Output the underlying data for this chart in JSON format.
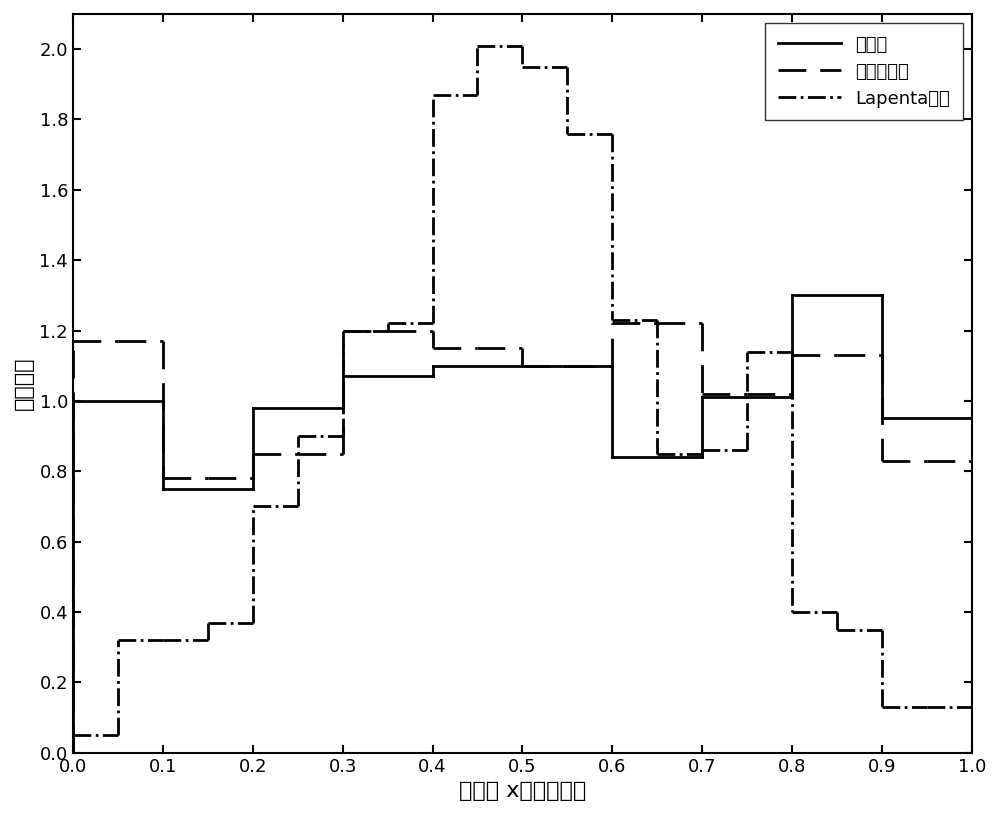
{
  "xlabel": "粒子沿 x方向的位置",
  "ylabel": "概率密度",
  "xlim": [
    0,
    1.0
  ],
  "ylim": [
    0,
    2.1
  ],
  "xticks": [
    0,
    0.1,
    0.2,
    0.3,
    0.4,
    0.5,
    0.6,
    0.7,
    0.8,
    0.9,
    1.0
  ],
  "yticks": [
    0,
    0.2,
    0.4,
    0.6,
    0.8,
    1.0,
    1.2,
    1.4,
    1.6,
    1.8,
    2.0
  ],
  "hebing_edges": [
    0.0,
    0.1,
    0.2,
    0.3,
    0.4,
    0.5,
    0.6,
    0.7,
    0.8,
    0.9,
    1.0
  ],
  "hebing_vals": [
    1.0,
    0.75,
    0.98,
    1.07,
    1.1,
    1.1,
    0.84,
    1.01,
    1.3,
    0.95
  ],
  "sihe_edges": [
    0.0,
    0.05,
    0.1,
    0.15,
    0.2,
    0.25,
    0.3,
    0.35,
    0.4,
    0.45,
    0.5,
    0.55,
    0.6,
    0.65,
    0.7,
    0.75,
    0.8,
    0.85,
    0.9,
    0.95,
    1.0
  ],
  "sihe_vals": [
    1.17,
    1.17,
    0.78,
    0.78,
    0.85,
    0.85,
    1.2,
    1.2,
    1.15,
    1.15,
    1.1,
    1.1,
    1.22,
    1.22,
    1.02,
    1.02,
    1.13,
    1.13,
    0.83,
    0.83
  ],
  "lapenta_edges": [
    0.0,
    0.05,
    0.1,
    0.15,
    0.2,
    0.25,
    0.3,
    0.35,
    0.4,
    0.45,
    0.5,
    0.55,
    0.6,
    0.65,
    0.7,
    0.75,
    0.8,
    0.85,
    0.9,
    0.95,
    1.0
  ],
  "lapenta_vals": [
    0.05,
    0.32,
    0.32,
    0.37,
    0.7,
    0.9,
    1.2,
    1.22,
    1.87,
    2.01,
    1.95,
    1.76,
    1.23,
    0.85,
    0.86,
    1.14,
    0.4,
    0.35,
    0.13,
    0.13
  ],
  "legend_labels": [
    "合并前",
    "四合二算法",
    "Lapenta算法"
  ],
  "line_color": "#000000",
  "lw": 2.0,
  "fontsize_label": 16,
  "fontsize_tick": 13,
  "fontsize_legend": 13
}
